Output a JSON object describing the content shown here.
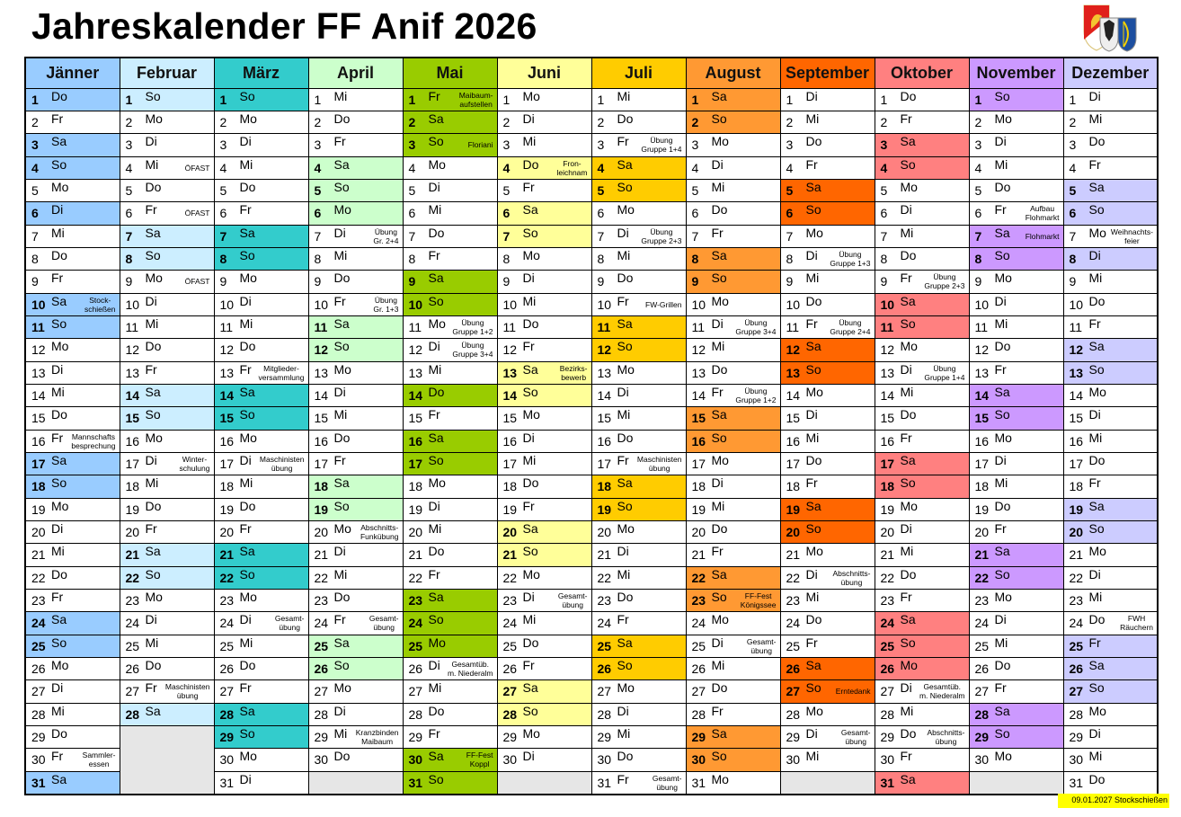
{
  "title": "Jahreskalender FF Anif 2026",
  "logo": {
    "icon": "coat-of-arms-logo"
  },
  "footer_note": "09.01.2027 Stockschießen",
  "empty_color": "#e6e6e6",
  "months": [
    {
      "name": "Jänner",
      "color": "#99ccff",
      "holidays": [
        1,
        6
      ],
      "weekdays": "Do Fr Sa So Mo Di Mi Do Fr Sa So Mo Di Mi Do Fr Sa So Mo Di Mi Do Fr Sa So Mo Di Mi Do Fr Sa",
      "notes": {
        "10": "Stock-\nschießen",
        "16": "Mannschafts\nbesprechung",
        "30": "Sammler-\nessen"
      }
    },
    {
      "name": "Februar",
      "color": "#cceeff",
      "holidays": [],
      "weekdays": "So Mo Di Mi Do Fr Sa So Mo Di Mi Do Fr Sa So Mo Di Mi Do Fr Sa So Mo Di Mi Do Fr Sa",
      "notes": {
        "4": "ÖFAST",
        "6": "ÖFAST",
        "9": "ÖFAST",
        "17": "Winter-\nschulung",
        "27": "Maschinisten\nübung"
      }
    },
    {
      "name": "März",
      "color": "#33cccc",
      "holidays": [],
      "weekdays": "So Mo Di Mi Do Fr Sa So Mo Di Mi Do Fr Sa So Mo Di Mi Do Fr Sa So Mo Di Mi Do Fr Sa So Mo Di",
      "notes": {
        "13": "Mitglieder-\nversammlung",
        "17": "Maschinisten\nübung",
        "24": "Gesamt-\nübung"
      }
    },
    {
      "name": "April",
      "color": "#ccffcc",
      "holidays": [
        6
      ],
      "weekdays": "Mi Do Fr Sa So Mo Di Mi Do Fr Sa So Mo Di Mi Do Fr Sa So Mo Di Mi Do Fr Sa So Mo Di Mi Do",
      "notes": {
        "7": "Übung\nGr. 2+4",
        "10": "Übung\nGr. 1+3",
        "20": "Abschnitts-\nFunkübung",
        "24": "Gesamt-\nübung",
        "29": "Kranzbinden\nMaibaum"
      }
    },
    {
      "name": "Mai",
      "color": "#99cc00",
      "holidays": [
        1,
        14,
        25
      ],
      "weekdays": "Fr Sa So Mo Di Mi Do Fr Sa So Mo Di Mi Do Fr Sa So Mo Di Mi Do Fr Sa So Mo Di Mi Do Fr Sa So",
      "notes": {
        "1": "Maibaum-\naufstellen",
        "3": "Floriani",
        "11": "Übung\nGruppe 1+2",
        "12": "Übung\nGruppe 3+4",
        "26": "Gesamtüb.\nm. Niederalm",
        "30": "FF-Fest\nKoppl"
      }
    },
    {
      "name": "Juni",
      "color": "#ffff99",
      "holidays": [
        4
      ],
      "weekdays": "Mo Di Mi Do Fr Sa So Mo Di Mi Do Fr Sa So Mo Di Mi Do Fr Sa So Mo Di Mi Do Fr Sa So Mo Di",
      "notes": {
        "4": "Fron-\nleichnam",
        "13": "Bezirks-\nbewerb",
        "23": "Gesamt-\nübung"
      }
    },
    {
      "name": "Juli",
      "color": "#ffcc00",
      "holidays": [],
      "weekdays": "Mi Do Fr Sa So Mo Di Mi Do Fr Sa So Mo Di Mi Do Fr Sa So Mo Di Mi Do Fr Sa So Mo Di Mi Do Fr",
      "notes": {
        "3": "Übung\nGruppe 1+4",
        "7": "Übung\nGruppe 2+3",
        "10": "FW-Grillen",
        "17": "Maschinisten\nübung",
        "31": "Gesamt-\nübung"
      }
    },
    {
      "name": "August",
      "color": "#ff9933",
      "holidays": [
        15
      ],
      "weekdays": "Sa So Mo Di Mi Do Fr Sa So Mo Di Mi Do Fr Sa So Mo Di Mi Do Fr Sa So Mo Di Mi Do Fr Sa So Mo",
      "notes": {
        "11": "Übung\nGruppe 3+4",
        "14": "Übung\nGruppe 1+2",
        "23": "FF-Fest\nKönigssee",
        "25": "Gesamt-\nübung"
      }
    },
    {
      "name": "September",
      "color": "#ff6600",
      "holidays": [],
      "weekdays": "Di Mi Do Fr Sa So Mo Di Mi Do Fr Sa So Mo Di Mi Do Fr Sa So Mo Di Mi Do Fr Sa So Mo Di Mi",
      "notes": {
        "8": "Übung\nGruppe 1+3",
        "11": "Übung\nGruppe 2+4",
        "22": "Abschnitts-\nübung",
        "27": "Erntedank",
        "29": "Gesamt-\nübung"
      }
    },
    {
      "name": "Oktober",
      "color": "#ff8080",
      "holidays": [
        26
      ],
      "weekdays": "Do Fr Sa So Mo Di Mi Do Fr Sa So Mo Di Mi Do Fr Sa So Mo Di Mi Do Fr Sa So Mo Di Mi Do Fr Sa",
      "notes": {
        "9": "Übung\nGruppe 2+3",
        "13": "Übung\nGruppe 1+4",
        "27": "Gesamtüb.\nm. Niederalm",
        "29": "Abschnitts-\nübung"
      }
    },
    {
      "name": "November",
      "color": "#cc99ff",
      "holidays": [
        1
      ],
      "weekdays": "So Mo Di Mi Do Fr Sa So Mo Di Mi Do Fr Sa So Mo Di Mi Do Fr Sa So Mo Di Mi Do Fr Sa So Mo",
      "notes": {
        "6": "Aufbau\nFlohmarkt",
        "7": "Flohmarkt"
      }
    },
    {
      "name": "Dezember",
      "color": "#ccccff",
      "holidays": [
        8,
        25,
        26
      ],
      "weekdays": "Di Mi Do Fr Sa So Mo Di Mi Do Fr Sa So Mo Di Mi Do Fr Sa So Mo Di Mi Do Fr Sa So Mo Di Mi Do",
      "notes": {
        "7": "Weihnachts-\nfeier",
        "24": "FWH\nRäuchern"
      }
    }
  ]
}
